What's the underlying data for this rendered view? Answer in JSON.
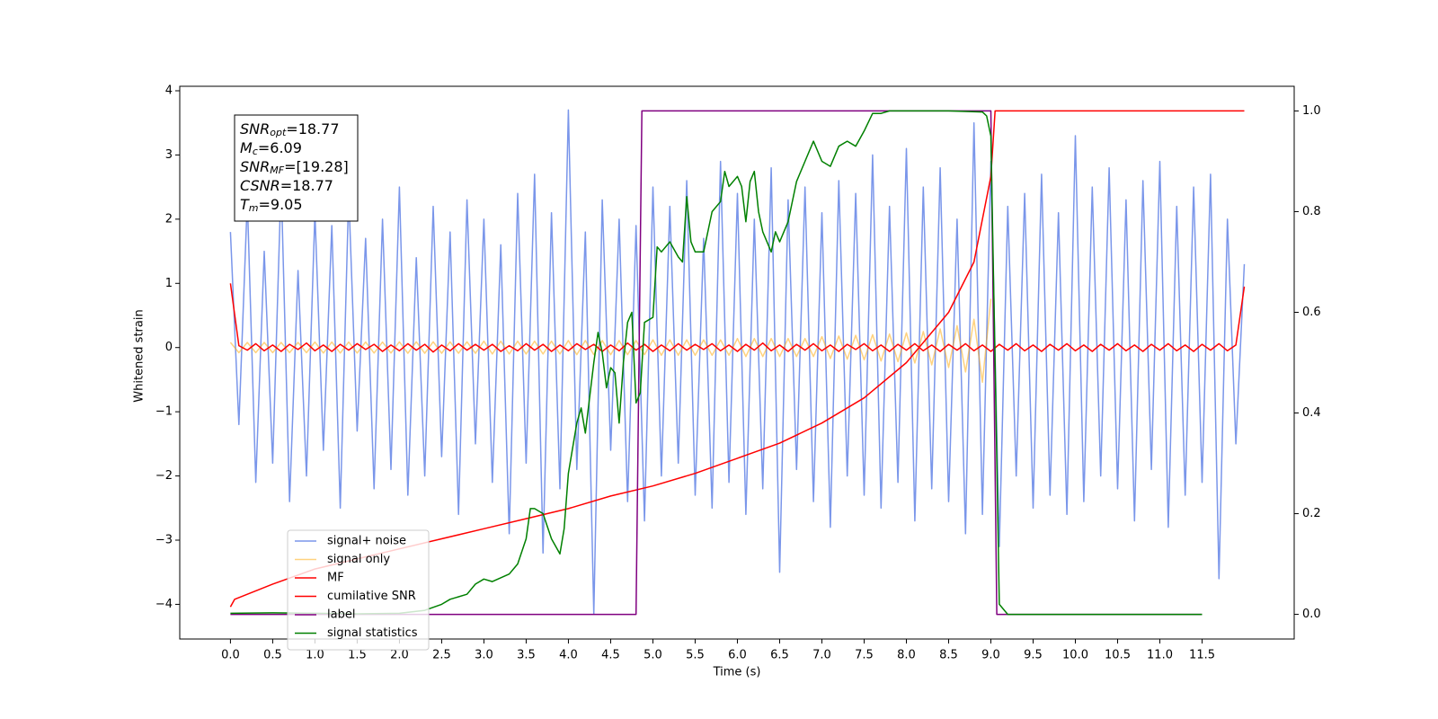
{
  "chart_data": {
    "type": "line",
    "xlabel": "Time (s)",
    "ylabel": "Whitened strain",
    "xlim": [
      -0.6,
      12.59
    ],
    "ylim": [
      -4.54,
      4.07
    ],
    "y2lim": [
      -0.049,
      1.049
    ],
    "xticks": [
      {
        "value": 0,
        "label": "0.0"
      },
      {
        "value": 0.5,
        "label": "0.5"
      },
      {
        "value": 1,
        "label": "1.0"
      },
      {
        "value": 1.5,
        "label": "1.5"
      },
      {
        "value": 2,
        "label": "2.0"
      },
      {
        "value": 2.5,
        "label": "2.5"
      },
      {
        "value": 3,
        "label": "3.0"
      },
      {
        "value": 3.5,
        "label": "3.5"
      },
      {
        "value": 4,
        "label": "4.0"
      },
      {
        "value": 4.5,
        "label": "4.5"
      },
      {
        "value": 5,
        "label": "5.0"
      },
      {
        "value": 5.5,
        "label": "5.5"
      },
      {
        "value": 6,
        "label": "6.0"
      },
      {
        "value": 6.5,
        "label": "6.5"
      },
      {
        "value": 7,
        "label": "7.0"
      },
      {
        "value": 7.5,
        "label": "7.5"
      },
      {
        "value": 8,
        "label": "8.0"
      },
      {
        "value": 8.5,
        "label": "8.5"
      },
      {
        "value": 9,
        "label": "9.0"
      },
      {
        "value": 9.5,
        "label": "9.5"
      },
      {
        "value": 10,
        "label": "10.0"
      },
      {
        "value": 10.5,
        "label": "10.5"
      },
      {
        "value": 11,
        "label": "11.0"
      },
      {
        "value": 11.5,
        "label": "11.5"
      }
    ],
    "yticks": [
      {
        "value": -4,
        "label": "−4"
      },
      {
        "value": -3,
        "label": "−3"
      },
      {
        "value": -2,
        "label": "−2"
      },
      {
        "value": -1,
        "label": "−1"
      },
      0,
      1,
      2,
      3,
      4
    ],
    "y2ticks": [
      {
        "value": 0,
        "label": "0.0"
      },
      {
        "value": 0.2,
        "label": "0.2"
      },
      {
        "value": 0.4,
        "label": "0.4"
      },
      {
        "value": 0.6,
        "label": "0.6"
      },
      {
        "value": 0.8,
        "label": "0.8"
      },
      {
        "value": 1,
        "label": "1.0"
      }
    ],
    "annotations": [
      {
        "symbol": "SNR",
        "subscript": "opt",
        "text": "=18.77"
      },
      {
        "symbol": "M",
        "subscript": "c",
        "text": "=6.09"
      },
      {
        "symbol": "SNR",
        "subscript": "MF",
        "text": "=[19.28]"
      },
      {
        "symbol": "CSNR",
        "text": "=18.77"
      },
      {
        "symbol": "T",
        "subscript": "m",
        "text": "=9.05"
      }
    ],
    "x": [
      0,
      0.1,
      0.2,
      0.3,
      0.4,
      0.5,
      0.6,
      0.7,
      0.8,
      0.9,
      1,
      1.1,
      1.2,
      1.3,
      1.4,
      1.5,
      1.6,
      1.7,
      1.8,
      1.9,
      2,
      2.1,
      2.2,
      2.3,
      2.4,
      2.5,
      2.6,
      2.7,
      2.8,
      2.9,
      3,
      3.1,
      3.2,
      3.3,
      3.4,
      3.5,
      3.6,
      3.7,
      3.8,
      3.9,
      4,
      4.1,
      4.2,
      4.3,
      4.4,
      4.5,
      4.6,
      4.7,
      4.8,
      4.9,
      5,
      5.1,
      5.2,
      5.3,
      5.4,
      5.5,
      5.6,
      5.7,
      5.8,
      5.9,
      6,
      6.1,
      6.2,
      6.3,
      6.4,
      6.5,
      6.6,
      6.7,
      6.8,
      6.9,
      7,
      7.1,
      7.2,
      7.3,
      7.4,
      7.5,
      7.6,
      7.7,
      7.8,
      7.9,
      8,
      8.1,
      8.2,
      8.3,
      8.4,
      8.5,
      8.6,
      8.7,
      8.8,
      8.9,
      9,
      9.1,
      9.2,
      9.3,
      9.4,
      9.5,
      9.6,
      9.7,
      9.8,
      9.9,
      10,
      10.1,
      10.2,
      10.3,
      10.4,
      10.5,
      10.6,
      10.7,
      10.8,
      10.9,
      11,
      11.1,
      11.2,
      11.3,
      11.4,
      11.5,
      11.6,
      11.7,
      11.8,
      11.9,
      12
    ],
    "series": [
      {
        "name": "signal+ noise",
        "color": "#4169e1",
        "alpha": 0.7,
        "values": [
          1.8,
          -1.2,
          2.3,
          -2.1,
          1.5,
          -1.8,
          2.6,
          -2.4,
          1.2,
          -2.0,
          2.1,
          -1.6,
          1.9,
          -2.5,
          2.4,
          -1.3,
          1.7,
          -2.2,
          2.0,
          -1.9,
          2.5,
          -2.3,
          1.4,
          -2.0,
          2.2,
          -1.7,
          1.8,
          -2.6,
          2.3,
          -1.5,
          2.0,
          -2.1,
          1.6,
          -2.9,
          2.4,
          -1.8,
          2.7,
          -3.2,
          2.1,
          -2.2,
          3.7,
          -1.9,
          1.8,
          -4.15,
          2.3,
          -1.6,
          2.0,
          -2.4,
          1.9,
          -2.7,
          2.5,
          -2.0,
          2.2,
          -1.8,
          2.6,
          -2.3,
          1.7,
          -2.5,
          2.9,
          -2.1,
          2.4,
          -2.6,
          2.0,
          -2.2,
          2.8,
          -3.5,
          2.3,
          -1.9,
          2.5,
          -2.4,
          2.1,
          -2.8,
          2.6,
          -2.0,
          2.4,
          -2.3,
          3.0,
          -2.5,
          2.2,
          -2.1,
          3.1,
          -2.7,
          2.5,
          -2.2,
          2.8,
          -2.4,
          2.0,
          -2.9,
          3.5,
          -2.6,
          2.9,
          -3.1,
          2.2,
          -2.0,
          2.4,
          -2.5,
          2.7,
          -2.3,
          2.1,
          -2.6,
          3.3,
          -2.4,
          2.5,
          -2.0,
          2.8,
          -2.2,
          2.3,
          -2.7,
          2.6,
          -1.9,
          2.9,
          -2.8,
          2.2,
          -2.3,
          2.5,
          -2.1,
          2.7,
          -3.6,
          2.0,
          -1.5,
          1.3
        ]
      },
      {
        "name": "signal only",
        "color": "#ffa500",
        "alpha": 0.5,
        "values": [
          0.08,
          -0.08,
          0.08,
          -0.08,
          0.08,
          -0.08,
          0.08,
          -0.08,
          0.08,
          -0.08,
          0.085,
          -0.085,
          0.085,
          -0.085,
          0.085,
          -0.085,
          0.085,
          -0.085,
          0.085,
          -0.085,
          0.09,
          -0.09,
          0.09,
          -0.09,
          0.09,
          -0.09,
          0.09,
          -0.09,
          0.09,
          -0.09,
          0.1,
          -0.1,
          0.1,
          -0.1,
          0.1,
          -0.1,
          0.1,
          -0.1,
          0.1,
          -0.1,
          0.11,
          -0.11,
          0.11,
          -0.11,
          0.11,
          -0.11,
          0.11,
          -0.11,
          0.11,
          -0.11,
          0.12,
          -0.12,
          0.12,
          -0.12,
          0.12,
          -0.12,
          0.12,
          -0.12,
          0.12,
          -0.12,
          0.14,
          -0.14,
          0.14,
          -0.14,
          0.14,
          -0.14,
          0.14,
          -0.14,
          0.14,
          -0.14,
          0.17,
          -0.17,
          0.18,
          -0.18,
          0.19,
          -0.19,
          0.2,
          -0.21,
          0.21,
          -0.22,
          0.23,
          -0.24,
          0.25,
          -0.27,
          0.29,
          -0.31,
          0.34,
          -0.38,
          0.44,
          -0.54,
          0.76,
          null,
          null,
          null,
          null,
          null,
          null,
          null,
          null,
          null,
          null,
          null,
          null,
          null,
          null,
          null,
          null,
          null,
          null,
          null,
          null,
          null,
          null,
          null,
          null,
          null,
          null,
          null,
          null,
          null,
          null
        ]
      },
      {
        "name": "MF",
        "color": "#ff0000",
        "values": [
          1.0,
          0.03,
          -0.04,
          0.06,
          -0.05,
          0.04,
          -0.06,
          0.05,
          -0.03,
          0.07,
          -0.05,
          0.04,
          -0.06,
          0.05,
          -0.04,
          0.06,
          -0.03,
          0.05,
          -0.06,
          0.04,
          -0.05,
          0.06,
          -0.04,
          0.05,
          -0.07,
          0.04,
          -0.05,
          0.06,
          -0.04,
          0.05,
          -0.04,
          0.05,
          -0.06,
          0.03,
          -0.05,
          0.06,
          -0.04,
          0.05,
          -0.06,
          0.04,
          -0.05,
          0.06,
          -0.03,
          0.05,
          -0.06,
          0.04,
          -0.05,
          0.07,
          -0.04,
          0.05,
          -0.06,
          0.04,
          -0.05,
          0.06,
          -0.04,
          0.05,
          -0.03,
          0.06,
          -0.05,
          0.04,
          -0.06,
          0.05,
          -0.04,
          0.07,
          -0.05,
          0.04,
          -0.06,
          0.05,
          -0.04,
          0.06,
          -0.05,
          0.04,
          -0.06,
          0.05,
          -0.03,
          0.06,
          -0.05,
          0.04,
          -0.06,
          0.05,
          -0.04,
          0.06,
          -0.05,
          0.04,
          -0.06,
          0.05,
          -0.04,
          0.06,
          -0.05,
          0.04,
          -0.06,
          0.05,
          -0.04,
          0.06,
          -0.05,
          0.04,
          -0.06,
          0.05,
          -0.04,
          0.06,
          -0.05,
          0.04,
          -0.06,
          0.05,
          -0.04,
          0.06,
          -0.05,
          0.04,
          -0.06,
          0.05,
          -0.04,
          0.06,
          -0.05,
          0.04,
          -0.06,
          0.05,
          -0.04,
          0.06,
          -0.05,
          0.04,
          0.95
        ]
      },
      {
        "name": "cumilative SNR",
        "color": "#ff0000",
        "axis": "y2",
        "x": [
          0,
          0.05,
          0.5,
          1,
          1.5,
          2,
          2.5,
          3,
          3.5,
          4,
          4.5,
          5,
          5.5,
          6,
          6.5,
          7,
          7.5,
          8,
          8.5,
          8.8,
          9,
          9.05,
          12
        ],
        "values": [
          0.015,
          0.03,
          0.06,
          0.09,
          0.11,
          0.13,
          0.15,
          0.17,
          0.19,
          0.21,
          0.235,
          0.255,
          0.28,
          0.31,
          0.34,
          0.38,
          0.43,
          0.5,
          0.6,
          0.7,
          0.87,
          1,
          1
        ]
      },
      {
        "name": "label",
        "color": "#800080",
        "axis": "y2",
        "x": [
          0,
          4.8,
          4.87,
          9.0,
          9.07,
          11.5
        ],
        "values": [
          0,
          0,
          1,
          1,
          0,
          0
        ]
      },
      {
        "name": "signal statistics",
        "color": "#008000",
        "axis": "y2",
        "x": [
          0,
          0.5,
          1,
          1.5,
          2,
          2.3,
          2.5,
          2.6,
          2.8,
          2.9,
          3.0,
          3.1,
          3.3,
          3.4,
          3.5,
          3.55,
          3.6,
          3.7,
          3.8,
          3.9,
          3.95,
          4.0,
          4.1,
          4.15,
          4.2,
          4.3,
          4.35,
          4.4,
          4.45,
          4.5,
          4.55,
          4.6,
          4.65,
          4.7,
          4.75,
          4.8,
          4.85,
          4.9,
          5.0,
          5.05,
          5.1,
          5.2,
          5.3,
          5.35,
          5.4,
          5.45,
          5.5,
          5.6,
          5.7,
          5.8,
          5.85,
          5.9,
          6.0,
          6.05,
          6.1,
          6.15,
          6.2,
          6.25,
          6.3,
          6.4,
          6.45,
          6.5,
          6.6,
          6.7,
          6.8,
          6.9,
          7.0,
          7.1,
          7.2,
          7.3,
          7.4,
          7.5,
          7.6,
          7.7,
          7.8,
          8.0,
          8.5,
          8.9,
          8.95,
          9.0,
          9.05,
          9.1,
          9.15,
          9.2,
          11.5
        ],
        "values": [
          0.002,
          0.003,
          0.002,
          0.001,
          0.002,
          0.008,
          0.02,
          0.03,
          0.04,
          0.06,
          0.07,
          0.065,
          0.08,
          0.1,
          0.15,
          0.21,
          0.21,
          0.2,
          0.15,
          0.12,
          0.17,
          0.28,
          0.38,
          0.41,
          0.36,
          0.5,
          0.56,
          0.52,
          0.45,
          0.49,
          0.48,
          0.38,
          0.5,
          0.58,
          0.6,
          0.42,
          0.44,
          0.58,
          0.59,
          0.73,
          0.72,
          0.74,
          0.71,
          0.7,
          0.83,
          0.74,
          0.72,
          0.72,
          0.8,
          0.82,
          0.88,
          0.85,
          0.87,
          0.85,
          0.78,
          0.86,
          0.88,
          0.8,
          0.76,
          0.72,
          0.76,
          0.74,
          0.78,
          0.86,
          0.9,
          0.94,
          0.9,
          0.89,
          0.93,
          0.94,
          0.93,
          0.96,
          0.995,
          0.995,
          1,
          1,
          1,
          0.998,
          0.99,
          0.95,
          0.5,
          0.02,
          0.01,
          0,
          0
        ]
      }
    ]
  }
}
